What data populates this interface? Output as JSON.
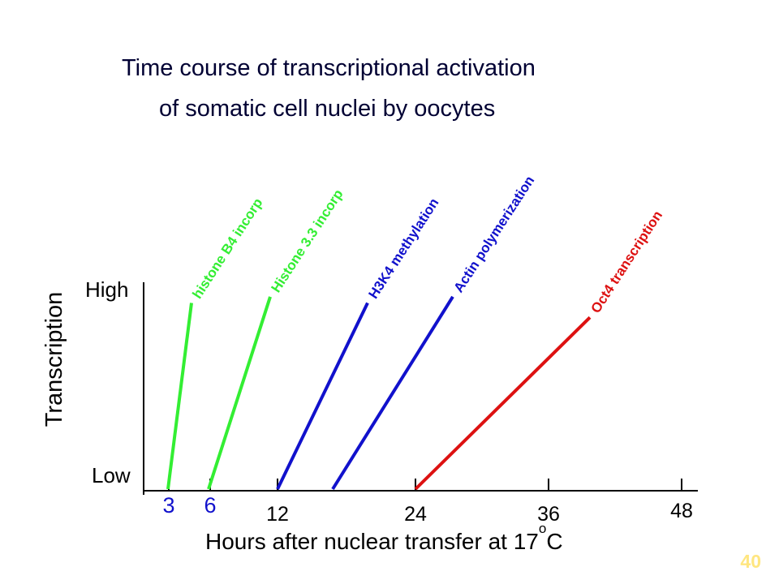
{
  "title_line1": "Time course of transcriptional activation",
  "title_line2": "of somatic cell nuclei by oocytes",
  "page_number": "40",
  "chart_data": {
    "type": "line",
    "ylabel": "Transcription",
    "y_tick_high": "High",
    "y_tick_low": "Low",
    "xlabel": "Hours after nuclear transfer at 17",
    "xlabel_degree": "o",
    "xlabel_unit": "C",
    "x_ticks": [
      "3",
      "6",
      "12",
      "24",
      "36",
      "48"
    ],
    "xlim": [
      0,
      48
    ],
    "series": [
      {
        "name": "histone B4 incorp",
        "color": "#33ee33",
        "points": [
          [
            2,
            0
          ],
          [
            4,
            0.9
          ]
        ]
      },
      {
        "name": "Histone 3.3 incorp",
        "color": "#33ee33",
        "points": [
          [
            5,
            0
          ],
          [
            11,
            0.93
          ]
        ]
      },
      {
        "name": "H3K4 methylation",
        "color": "#1111cc",
        "points": [
          [
            12,
            0
          ],
          [
            20,
            0.9
          ]
        ]
      },
      {
        "name": "Actin polymerization",
        "color": "#1111cc",
        "points": [
          [
            16,
            0
          ],
          [
            27,
            0.93
          ]
        ]
      },
      {
        "name": "Oct4 transcription",
        "color": "#dd1111",
        "points": [
          [
            24,
            0
          ],
          [
            40,
            0.83
          ]
        ]
      }
    ]
  }
}
